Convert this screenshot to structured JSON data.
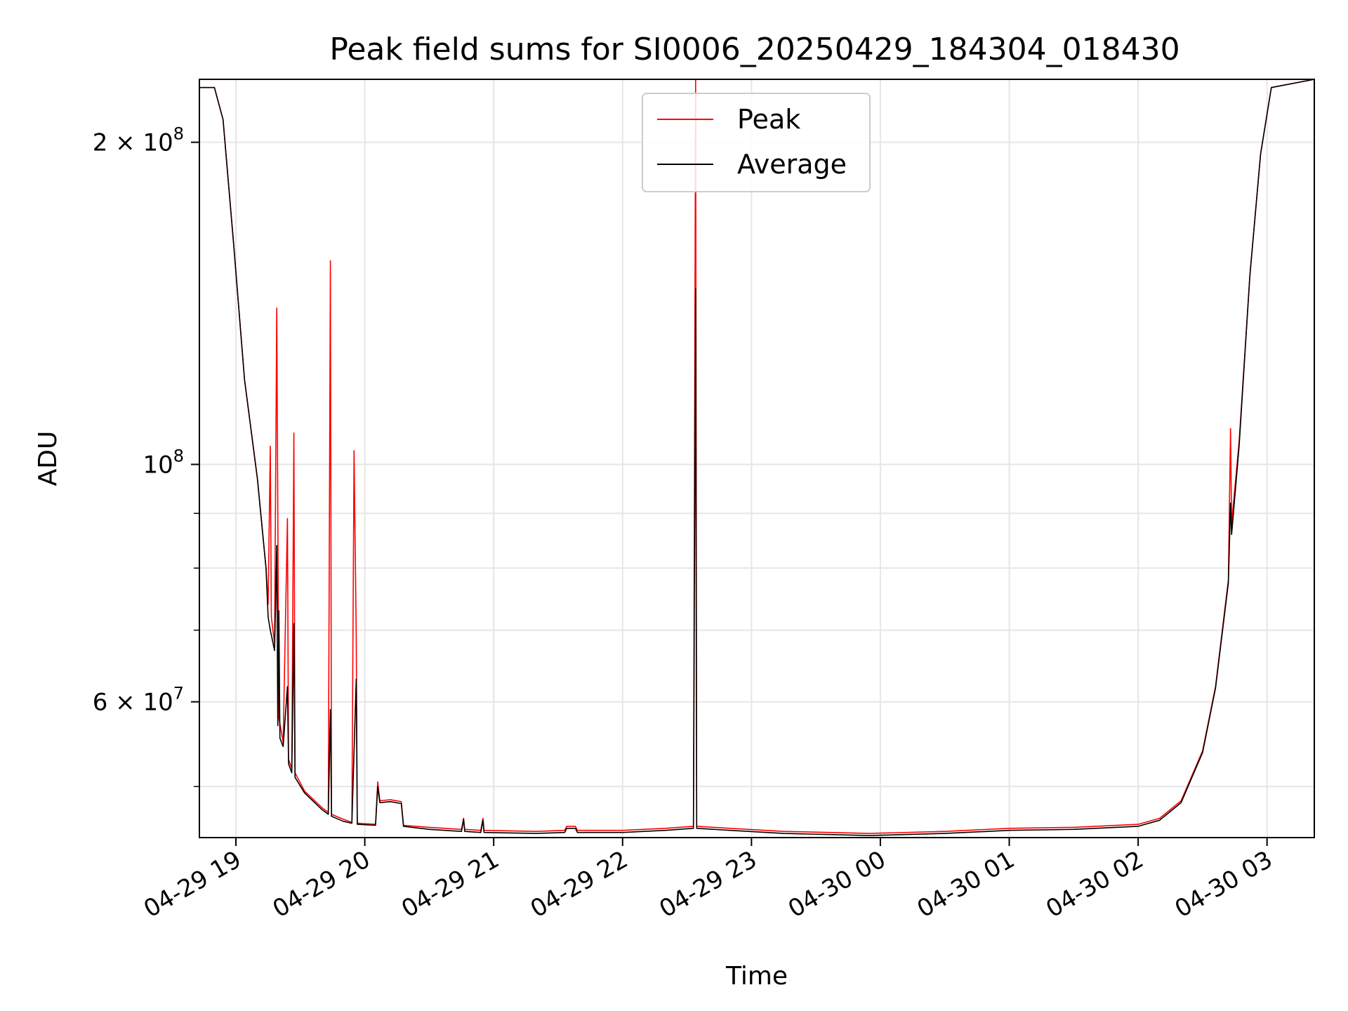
{
  "chart_data": {
    "type": "line",
    "title": "Peak field sums for SI0006_20250429_184304_018430",
    "xlabel": "Time",
    "ylabel": "ADU",
    "y_scale": "log",
    "xlim": [
      "2025-04-29 18:43",
      "2025-04-30 03:22"
    ],
    "ylim": [
      44800000,
      229000000
    ],
    "grid": true,
    "legend_position": "top-center",
    "x_ticks": [
      {
        "t": "2025-04-29 19:00",
        "label": "04-29 19"
      },
      {
        "t": "2025-04-29 20:00",
        "label": "04-29 20"
      },
      {
        "t": "2025-04-29 21:00",
        "label": "04-29 21"
      },
      {
        "t": "2025-04-29 22:00",
        "label": "04-29 22"
      },
      {
        "t": "2025-04-29 23:00",
        "label": "04-29 23"
      },
      {
        "t": "2025-04-30 00:00",
        "label": "04-30 00"
      },
      {
        "t": "2025-04-30 01:00",
        "label": "04-30 01"
      },
      {
        "t": "2025-04-30 02:00",
        "label": "04-30 02"
      },
      {
        "t": "2025-04-30 03:00",
        "label": "04-30 03"
      }
    ],
    "y_ticks_major": [
      {
        "value": 60000000,
        "mant": "6",
        "exp": "7"
      },
      {
        "value": 100000000,
        "mant": "",
        "exp": "8"
      },
      {
        "value": 200000000,
        "mant": "2",
        "exp": "8"
      }
    ],
    "y_ticks_minor": [
      50000000,
      70000000,
      80000000,
      90000000
    ],
    "series": [
      {
        "name": "Peak",
        "color": "#ff0000",
        "points": [
          [
            "2025-04-29 18:43",
            225000000
          ],
          [
            "2025-04-29 18:50",
            225000000
          ],
          [
            "2025-04-29 18:54",
            210000000
          ],
          [
            "2025-04-29 18:59",
            160000000
          ],
          [
            "2025-04-29 19:04",
            120000000
          ],
          [
            "2025-04-29 19:10",
            97000000
          ],
          [
            "2025-04-29 19:14",
            80000000
          ],
          [
            "2025-04-29 19:15",
            74000000
          ],
          [
            "2025-04-29 19:16",
            104000000
          ],
          [
            "2025-04-29 19:16.5",
            72000000
          ],
          [
            "2025-04-29 19:18",
            68000000
          ],
          [
            "2025-04-29 19:19",
            140000000
          ],
          [
            "2025-04-29 19:20",
            58000000
          ],
          [
            "2025-04-29 19:22",
            55000000
          ],
          [
            "2025-04-29 19:24",
            89000000
          ],
          [
            "2025-04-29 19:24.5",
            53000000
          ],
          [
            "2025-04-29 19:26",
            52000000
          ],
          [
            "2025-04-29 19:27",
            107000000
          ],
          [
            "2025-04-29 19:27.5",
            51500000
          ],
          [
            "2025-04-29 19:32",
            49500000
          ],
          [
            "2025-04-29 19:40",
            47800000
          ],
          [
            "2025-04-29 19:43",
            47300000
          ],
          [
            "2025-04-29 19:44",
            155000000
          ],
          [
            "2025-04-29 19:44.5",
            47100000
          ],
          [
            "2025-04-29 19:50",
            46600000
          ],
          [
            "2025-04-29 19:54",
            46300000
          ],
          [
            "2025-04-29 19:55",
            103000000
          ],
          [
            "2025-04-29 19:56",
            69000000
          ],
          [
            "2025-04-29 19:56.5",
            46200000
          ],
          [
            "2025-04-29 20:05",
            46100000
          ],
          [
            "2025-04-29 20:06",
            50500000
          ],
          [
            "2025-04-29 20:07",
            48500000
          ],
          [
            "2025-04-29 20:12",
            48600000
          ],
          [
            "2025-04-29 20:17",
            48400000
          ],
          [
            "2025-04-29 20:18",
            46000000
          ],
          [
            "2025-04-29 20:30",
            45800000
          ],
          [
            "2025-04-29 20:45",
            45600000
          ],
          [
            "2025-04-29 20:46",
            46700000
          ],
          [
            "2025-04-29 20:46.5",
            45600000
          ],
          [
            "2025-04-29 20:54",
            45500000
          ],
          [
            "2025-04-29 20:55",
            46700000
          ],
          [
            "2025-04-29 20:55.5",
            45500000
          ],
          [
            "2025-04-29 21:20",
            45400000
          ],
          [
            "2025-04-29 21:33",
            45500000
          ],
          [
            "2025-04-29 21:34",
            45900000
          ],
          [
            "2025-04-29 21:38",
            45900000
          ],
          [
            "2025-04-29 21:39",
            45500000
          ],
          [
            "2025-04-29 22:00",
            45500000
          ],
          [
            "2025-04-29 22:20",
            45700000
          ],
          [
            "2025-04-29 22:33",
            45900000
          ],
          [
            "2025-04-29 22:34",
            229000000
          ],
          [
            "2025-04-29 22:34.5",
            45900000
          ],
          [
            "2025-04-29 22:50",
            45700000
          ],
          [
            "2025-04-29 23:15",
            45400000
          ],
          [
            "2025-04-29 23:55",
            45200000
          ],
          [
            "2025-04-30 00:30",
            45400000
          ],
          [
            "2025-04-30 01:00",
            45700000
          ],
          [
            "2025-04-30 01:30",
            45800000
          ],
          [
            "2025-04-30 02:00",
            46100000
          ],
          [
            "2025-04-30 02:10",
            46700000
          ],
          [
            "2025-04-30 02:20",
            48500000
          ],
          [
            "2025-04-30 02:30",
            54000000
          ],
          [
            "2025-04-30 02:36",
            62000000
          ],
          [
            "2025-04-30 02:42",
            78000000
          ],
          [
            "2025-04-30 02:43",
            108000000
          ],
          [
            "2025-04-30 02:43.5",
            88000000
          ],
          [
            "2025-04-30 02:47",
            105000000
          ],
          [
            "2025-04-30 02:52",
            150000000
          ],
          [
            "2025-04-30 02:57",
            195000000
          ],
          [
            "2025-04-30 03:02",
            225000000
          ],
          [
            "2025-04-30 03:22",
            229000000
          ]
        ]
      },
      {
        "name": "Average",
        "color": "#000000",
        "points": [
          [
            "2025-04-29 18:43",
            225000000
          ],
          [
            "2025-04-29 18:50",
            225000000
          ],
          [
            "2025-04-29 18:54",
            210000000
          ],
          [
            "2025-04-29 18:59",
            160000000
          ],
          [
            "2025-04-29 19:04",
            120000000
          ],
          [
            "2025-04-29 19:10",
            97000000
          ],
          [
            "2025-04-29 19:14",
            80000000
          ],
          [
            "2025-04-29 19:15",
            72000000
          ],
          [
            "2025-04-29 19:16",
            70000000
          ],
          [
            "2025-04-29 19:18",
            67000000
          ],
          [
            "2025-04-29 19:19",
            84000000
          ],
          [
            "2025-04-29 19:19.5",
            57000000
          ],
          [
            "2025-04-29 19:20",
            73000000
          ],
          [
            "2025-04-29 19:20.5",
            55500000
          ],
          [
            "2025-04-29 19:22",
            54500000
          ],
          [
            "2025-04-29 19:24",
            62000000
          ],
          [
            "2025-04-29 19:24.5",
            52500000
          ],
          [
            "2025-04-29 19:26",
            51500000
          ],
          [
            "2025-04-29 19:27",
            71000000
          ],
          [
            "2025-04-29 19:27.5",
            51000000
          ],
          [
            "2025-04-29 19:32",
            49300000
          ],
          [
            "2025-04-29 19:40",
            47600000
          ],
          [
            "2025-04-29 19:43",
            47100000
          ],
          [
            "2025-04-29 19:44",
            59000000
          ],
          [
            "2025-04-29 19:44.5",
            46900000
          ],
          [
            "2025-04-29 19:50",
            46400000
          ],
          [
            "2025-04-29 19:54",
            46200000
          ],
          [
            "2025-04-29 19:56",
            63000000
          ],
          [
            "2025-04-29 19:56.5",
            46100000
          ],
          [
            "2025-04-29 20:05",
            46000000
          ],
          [
            "2025-04-29 20:06",
            50000000
          ],
          [
            "2025-04-29 20:07",
            48300000
          ],
          [
            "2025-04-29 20:12",
            48400000
          ],
          [
            "2025-04-29 20:17",
            48200000
          ],
          [
            "2025-04-29 20:18",
            45900000
          ],
          [
            "2025-04-29 20:30",
            45600000
          ],
          [
            "2025-04-29 20:45",
            45400000
          ],
          [
            "2025-04-29 20:46",
            46600000
          ],
          [
            "2025-04-29 20:46.5",
            45400000
          ],
          [
            "2025-04-29 20:54",
            45300000
          ],
          [
            "2025-04-29 20:55",
            46500000
          ],
          [
            "2025-04-29 20:55.5",
            45300000
          ],
          [
            "2025-04-29 21:20",
            45200000
          ],
          [
            "2025-04-29 21:33",
            45300000
          ],
          [
            "2025-04-29 21:34",
            45700000
          ],
          [
            "2025-04-29 21:38",
            45700000
          ],
          [
            "2025-04-29 21:39",
            45300000
          ],
          [
            "2025-04-29 22:00",
            45300000
          ],
          [
            "2025-04-29 22:20",
            45500000
          ],
          [
            "2025-04-29 22:33",
            45700000
          ],
          [
            "2025-04-29 22:34",
            146000000
          ],
          [
            "2025-04-29 22:34.5",
            45700000
          ],
          [
            "2025-04-29 22:50",
            45500000
          ],
          [
            "2025-04-29 23:15",
            45200000
          ],
          [
            "2025-04-29 23:55",
            45000000
          ],
          [
            "2025-04-30 00:30",
            45200000
          ],
          [
            "2025-04-30 01:00",
            45500000
          ],
          [
            "2025-04-30 01:30",
            45600000
          ],
          [
            "2025-04-30 02:00",
            45900000
          ],
          [
            "2025-04-30 02:10",
            46500000
          ],
          [
            "2025-04-30 02:20",
            48300000
          ],
          [
            "2025-04-30 02:30",
            53800000
          ],
          [
            "2025-04-30 02:36",
            61800000
          ],
          [
            "2025-04-30 02:42",
            77500000
          ],
          [
            "2025-04-30 02:43",
            92000000
          ],
          [
            "2025-04-30 02:43.5",
            86000000
          ],
          [
            "2025-04-30 02:47",
            104000000
          ],
          [
            "2025-04-30 02:52",
            150000000
          ],
          [
            "2025-04-30 02:57",
            195000000
          ],
          [
            "2025-04-30 03:02",
            225000000
          ],
          [
            "2025-04-30 03:22",
            229000000
          ]
        ]
      }
    ]
  }
}
